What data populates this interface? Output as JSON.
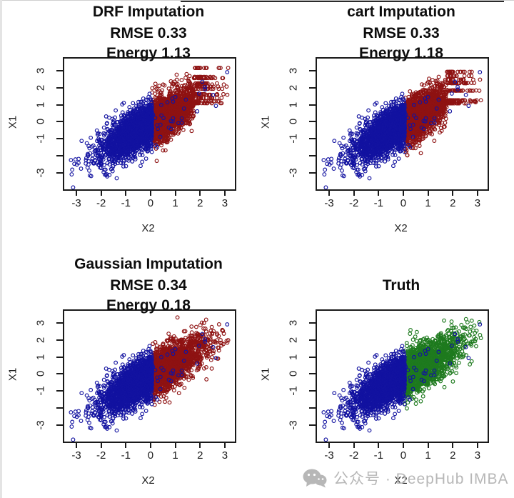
{
  "page": {
    "background": "#ffffff"
  },
  "palette": {
    "observed_blue": "#1212A0",
    "imputed_red": "#8E1212",
    "truth_green": "#1E7A1E",
    "axis_black": "#1a1a1a",
    "watermark_gray": "#b7b7b7"
  },
  "watermark": {
    "icon": "wechat-icon",
    "text": "公众号 · DeepHub IMBA"
  },
  "generator": {
    "n": 4200,
    "rho": 0.78,
    "seed": 42,
    "observed_right_rate": 0.015
  },
  "chart_data": [
    {
      "id": "drf",
      "type": "scatter",
      "title_lines": [
        "DRF Imputation",
        "RMSE 0.33",
        "Energy 1.13"
      ],
      "metrics": {
        "method": "DRF Imputation",
        "rmse": 0.33,
        "energy": 1.13
      },
      "xlabel": "X2",
      "ylabel": "X1",
      "xlim": [
        -3.55,
        3.35
      ],
      "ylim": [
        -3.9,
        3.8
      ],
      "xticks": [
        -3,
        -2,
        -1,
        0,
        1,
        2,
        3
      ],
      "xtick_labels": [
        "-3",
        "-2",
        "-1",
        "0",
        "1",
        "2",
        "3"
      ],
      "yticks": [
        -3,
        -2,
        -1,
        0,
        1,
        2,
        3
      ],
      "ytick_labels": [
        "-3",
        "",
        "-1",
        "0",
        "1",
        "2",
        "3"
      ],
      "legend": false,
      "grid": false,
      "series": [
        {
          "name": "observed X2<0",
          "color_key": "observed_blue",
          "n_approx": 2100
        },
        {
          "name": "imputed X2>0",
          "color_key": "imputed_red",
          "n_approx": 2100,
          "generator": {
            "mode": "streaky",
            "seed": 7,
            "streak_threshold": 1.7,
            "streak_levels": 12
          }
        }
      ]
    },
    {
      "id": "cart",
      "type": "scatter",
      "title_lines": [
        "cart Imputation",
        "RMSE 0.33",
        "Energy 1.18"
      ],
      "metrics": {
        "method": "cart Imputation",
        "rmse": 0.33,
        "energy": 1.18
      },
      "xlabel": "X2",
      "ylabel": "X1",
      "xlim": [
        -3.55,
        3.35
      ],
      "ylim": [
        -3.9,
        3.8
      ],
      "xticks": [
        -3,
        -2,
        -1,
        0,
        1,
        2,
        3
      ],
      "xtick_labels": [
        "-3",
        "-2",
        "-1",
        "0",
        "1",
        "2",
        "3"
      ],
      "yticks": [
        -3,
        -2,
        -1,
        0,
        1,
        2,
        3
      ],
      "ytick_labels": [
        "-3",
        "",
        "-1",
        "0",
        "1",
        "2",
        "3"
      ],
      "legend": false,
      "grid": false,
      "series": [
        {
          "name": "observed X2<0",
          "color_key": "observed_blue",
          "n_approx": 2100
        },
        {
          "name": "imputed X2>0",
          "color_key": "imputed_red",
          "n_approx": 2100,
          "generator": {
            "mode": "streaky",
            "seed": 13,
            "streak_threshold": 1.7,
            "streak_levels": 12
          }
        }
      ]
    },
    {
      "id": "gaussian",
      "type": "scatter",
      "title_lines": [
        "Gaussian Imputation",
        "RMSE 0.34",
        "Energy 0.18"
      ],
      "metrics": {
        "method": "Gaussian Imputation",
        "rmse": 0.34,
        "energy": 0.18
      },
      "xlabel": "X2",
      "ylabel": "X1",
      "xlim": [
        -3.55,
        3.35
      ],
      "ylim": [
        -3.9,
        3.8
      ],
      "xticks": [
        -3,
        -2,
        -1,
        0,
        1,
        2,
        3
      ],
      "xtick_labels": [
        "-3",
        "-2",
        "-1",
        "0",
        "1",
        "2",
        "3"
      ],
      "yticks": [
        -3,
        -2,
        -1,
        0,
        1,
        2,
        3
      ],
      "ytick_labels": [
        "-3",
        "",
        "-1",
        "0",
        "1",
        "2",
        "3"
      ],
      "legend": false,
      "grid": false,
      "series": [
        {
          "name": "observed X2<0",
          "color_key": "observed_blue",
          "n_approx": 2100
        },
        {
          "name": "imputed X2>0",
          "color_key": "imputed_red",
          "n_approx": 2100,
          "generator": {
            "mode": "gaussian",
            "seed": 21
          }
        }
      ]
    },
    {
      "id": "truth",
      "type": "scatter",
      "title_lines": [
        "",
        "Truth",
        ""
      ],
      "metrics": {
        "method": "Truth"
      },
      "xlabel": "X2",
      "ylabel": "X1",
      "xlim": [
        -3.55,
        3.35
      ],
      "ylim": [
        -3.9,
        3.8
      ],
      "xticks": [
        -3,
        -2,
        -1,
        0,
        1,
        2,
        3
      ],
      "xtick_labels": [
        "-3",
        "-2",
        "-1",
        "0",
        "1",
        "2",
        "3"
      ],
      "yticks": [
        -3,
        -2,
        -1,
        0,
        1,
        2,
        3
      ],
      "ytick_labels": [
        "-3",
        "",
        "-1",
        "0",
        "1",
        "2",
        "3"
      ],
      "legend": false,
      "grid": false,
      "series": [
        {
          "name": "observed X2<0",
          "color_key": "observed_blue",
          "n_approx": 2100
        },
        {
          "name": "true missing X2>0",
          "color_key": "truth_green",
          "n_approx": 2100,
          "generator": {
            "mode": "truth",
            "seed": 99
          }
        }
      ]
    }
  ]
}
